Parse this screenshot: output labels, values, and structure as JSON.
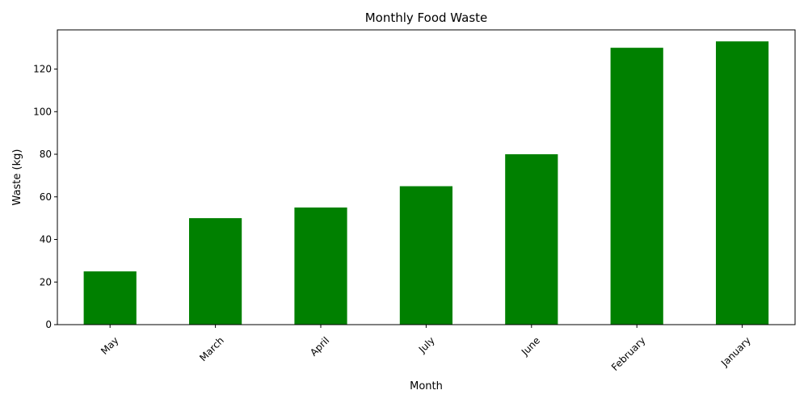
{
  "chart_data": {
    "type": "bar",
    "title": "Monthly Food Waste",
    "xlabel": "Month",
    "ylabel": "Waste (kg)",
    "categories": [
      "May",
      "March",
      "April",
      "July",
      "June",
      "February",
      "January"
    ],
    "values": [
      25,
      50,
      55,
      65,
      80,
      130,
      133
    ],
    "ylim": [
      0,
      138.4
    ],
    "yticks": [
      0,
      20,
      40,
      60,
      80,
      100,
      120
    ],
    "bar_color": "#008000",
    "grid": false,
    "legend": "none",
    "xtick_rotation": 45
  }
}
